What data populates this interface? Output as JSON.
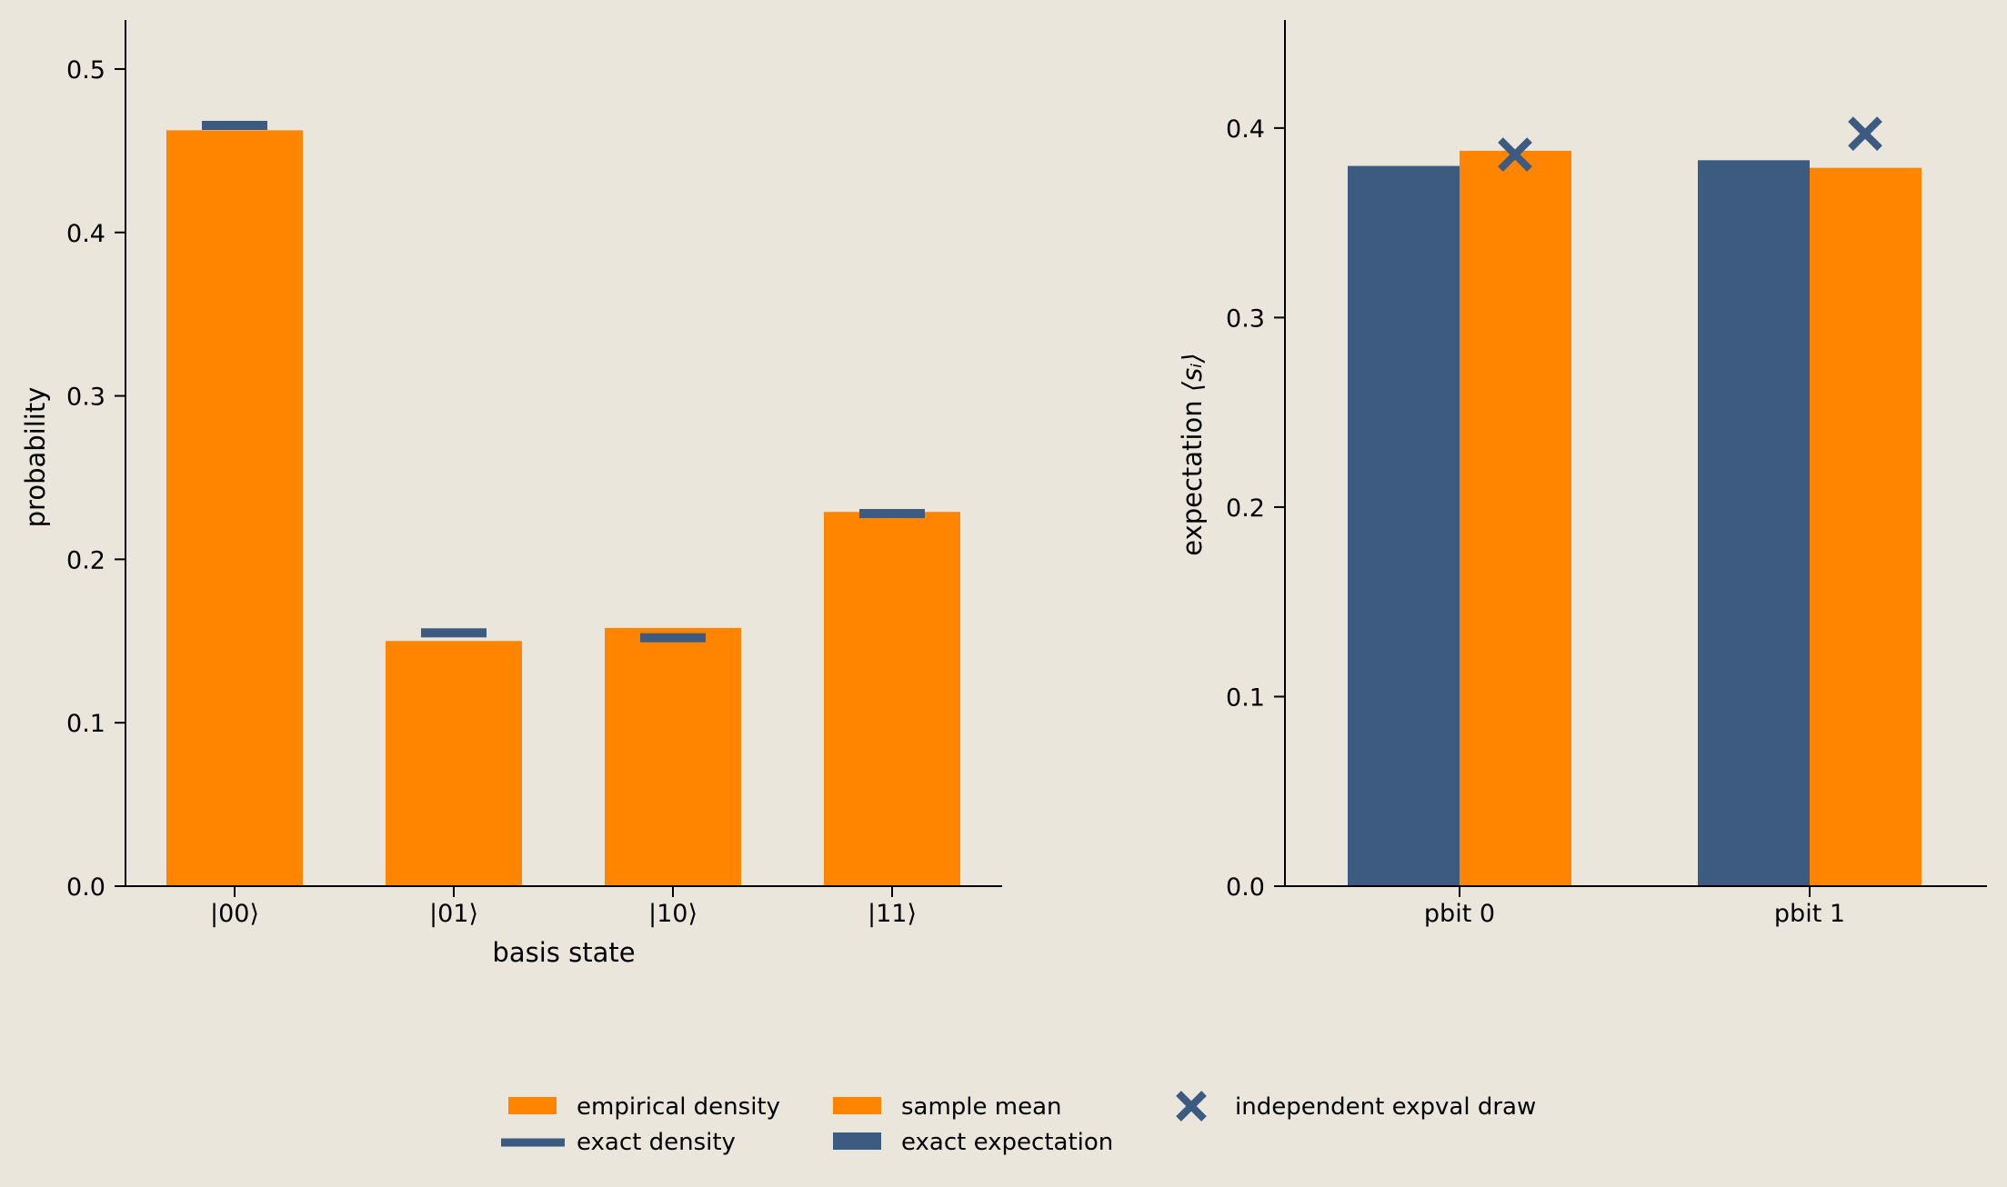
{
  "chart_data": [
    {
      "type": "bar",
      "xlabel": "basis state",
      "ylabel": "probability",
      "ylim": [
        0,
        0.53
      ],
      "yticks": [
        "0.0",
        "0.1",
        "0.2",
        "0.3",
        "0.4",
        "0.5"
      ],
      "categories": [
        "|00⟩",
        "|01⟩",
        "|10⟩",
        "|11⟩"
      ],
      "series": [
        {
          "name": "empirical density",
          "style": "bar",
          "color": "#ff8500",
          "values": [
            0.4625,
            0.15,
            0.158,
            0.229
          ]
        },
        {
          "name": "exact density",
          "style": "dash",
          "color": "#3d5a80",
          "values": [
            0.4655,
            0.155,
            0.152,
            0.228
          ]
        }
      ],
      "grid": false
    },
    {
      "type": "bar",
      "xlabel": "",
      "ylabel_main": "expectation ",
      "ylabel_sym": "⟨sᵢ⟩",
      "ylim": [
        0,
        0.457
      ],
      "yticks": [
        "0.0",
        "0.1",
        "0.2",
        "0.3",
        "0.4"
      ],
      "categories": [
        "pbit 0",
        "pbit 1"
      ],
      "series": [
        {
          "name": "exact expectation",
          "style": "bar",
          "color": "#3d5a80",
          "values": [
            0.38,
            0.383
          ]
        },
        {
          "name": "sample mean",
          "style": "bar",
          "color": "#ff8500",
          "values": [
            0.388,
            0.379
          ]
        },
        {
          "name": "independent expval draw",
          "style": "marker-x",
          "color": "#3d5a80",
          "values": [
            0.386,
            0.397
          ]
        }
      ],
      "grid": false
    }
  ],
  "legend": {
    "placement": "bottom-center",
    "entries": [
      {
        "label": "empirical density",
        "swatch": "patch",
        "color": "#ff8500"
      },
      {
        "label": "exact density",
        "swatch": "line",
        "color": "#3d5a80"
      },
      {
        "label": "sample mean",
        "swatch": "patch",
        "color": "#ff8500"
      },
      {
        "label": "exact expectation",
        "swatch": "patch",
        "color": "#3d5a80"
      },
      {
        "label": "independent expval draw",
        "swatch": "marker-x",
        "color": "#3d5a80"
      }
    ]
  }
}
